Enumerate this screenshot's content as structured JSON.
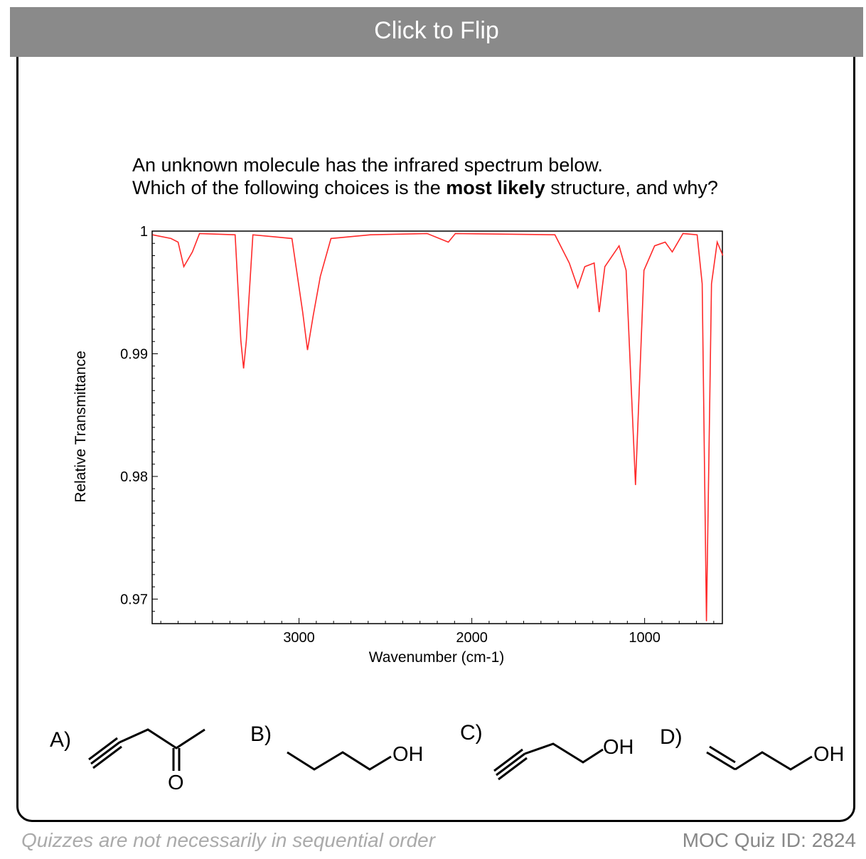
{
  "header": {
    "flip_label": "Click to Flip"
  },
  "question": {
    "line1": "An unknown molecule has the infrared spectrum below.",
    "line2_pre": "Which of the following choices is the ",
    "line2_bold": "most likely",
    "line2_post": " structure, and why?"
  },
  "chart_data": {
    "type": "line",
    "title": "",
    "xlabel": "Wavenumber (cm-1)",
    "ylabel": "Relative Transmittance",
    "xlim": [
      3850,
      550
    ],
    "ylim": [
      0.968,
      1.0
    ],
    "xticks": [
      3000,
      2000,
      1000
    ],
    "xtick_labels": [
      "3000",
      "2000",
      "1000"
    ],
    "yticks": [
      1,
      0.99,
      0.98,
      0.97
    ],
    "ytick_labels": [
      "1",
      "0.99",
      "0.98",
      "0.97"
    ],
    "grid": false,
    "series": [
      {
        "name": "IR spectrum",
        "color": "#ff2a2a",
        "x": [
          3848,
          3741,
          3700,
          3667,
          3617,
          3576,
          3370,
          3337,
          3321,
          3305,
          3267,
          3041,
          2979,
          2951,
          2918,
          2877,
          2815,
          2588,
          2259,
          2136,
          2095,
          1519,
          1436,
          1387,
          1346,
          1292,
          1263,
          1230,
          1148,
          1107,
          1053,
          1004,
          942,
          881,
          840,
          778,
          696,
          667,
          642,
          613,
          580,
          547
        ],
        "y": [
          0.9997,
          0.9994,
          0.9991,
          0.9971,
          0.9983,
          0.9998,
          0.9997,
          0.9911,
          0.9888,
          0.9911,
          0.9997,
          0.9994,
          0.9934,
          0.9903,
          0.9931,
          0.9963,
          0.9994,
          0.9997,
          0.9998,
          0.9991,
          0.9998,
          0.9997,
          0.9974,
          0.9954,
          0.9971,
          0.9974,
          0.9934,
          0.9971,
          0.9988,
          0.9968,
          0.9793,
          0.9968,
          0.9988,
          0.9991,
          0.9983,
          0.9998,
          0.9997,
          0.9957,
          0.9682,
          0.9957,
          0.9991,
          0.998
        ]
      }
    ]
  },
  "choices": [
    {
      "label": "A)",
      "group": "O"
    },
    {
      "label": "B)",
      "group": "OH"
    },
    {
      "label": "C)",
      "group": "OH"
    },
    {
      "label": "D)",
      "group": "OH"
    }
  ],
  "footer": {
    "note": "Quizzes are not necessarily in sequential order",
    "quiz_id": "MOC Quiz ID: 2824"
  }
}
